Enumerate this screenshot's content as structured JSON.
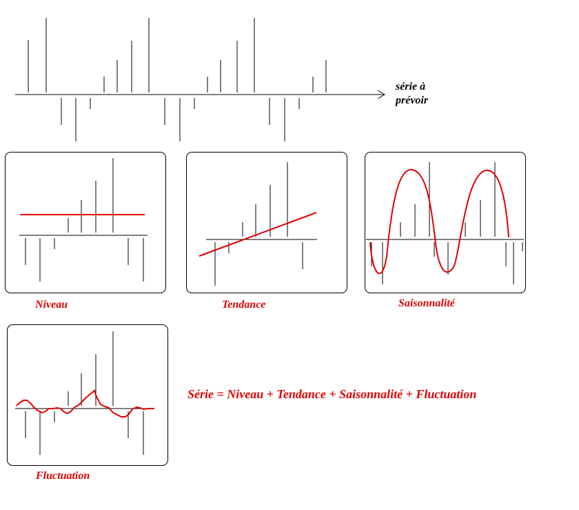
{
  "main": {
    "series_label_line1": "série à",
    "series_label_line2": "prévoir",
    "equation": "Série = Niveau + Tendance + Saisonnalité + Fluctuation"
  },
  "panels": [
    {
      "id": "niveau",
      "label": "Niveau"
    },
    {
      "id": "tendance",
      "label": "Tendance"
    },
    {
      "id": "saison",
      "label": "Saisonnalité"
    },
    {
      "id": "fluct",
      "label": "Fluctuation"
    }
  ],
  "colors": {
    "stroke": "#000000",
    "component": "#e00000",
    "label": "#e00000"
  }
}
